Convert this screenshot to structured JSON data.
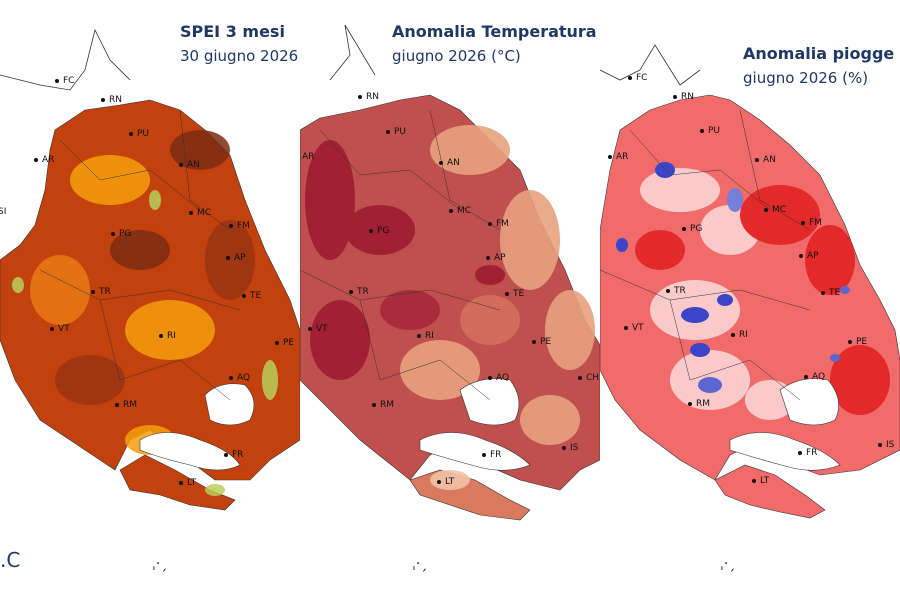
{
  "panels": [
    {
      "id": "spei",
      "title": "SPEI 3 mesi",
      "subtitle": "30 giugno 2026",
      "palette": {
        "base": "#c2410c",
        "light": "#f59e0b",
        "dark": "#7c2d12",
        "accent": "#b8d05a"
      },
      "cities": [
        "FC",
        "RN",
        "PU",
        "AR",
        "AN",
        "SI",
        "MC",
        "FM",
        "PG",
        "AP",
        "TR",
        "TE",
        "VT",
        "RI",
        "PE",
        "AQ",
        "RM",
        "FR",
        "LT"
      ]
    },
    {
      "id": "temp",
      "title": "Anomalia Temperatura",
      "subtitle": "giugno 2026 (°C)",
      "palette": {
        "base": "#c0504d",
        "light": "#e8a27f",
        "dark": "#9e1b32",
        "accent": "#f0c4a8"
      },
      "cities": [
        "RN",
        "PU",
        "AR",
        "AN",
        "MC",
        "FM",
        "PG",
        "AP",
        "TR",
        "TE",
        "VT",
        "RI",
        "PE",
        "AQ",
        "CH",
        "RM",
        "IS",
        "FR",
        "LT"
      ]
    },
    {
      "id": "rain",
      "title": "Anomalia piogge",
      "subtitle": "giugno 2026 (%)",
      "palette": {
        "base": "#f26b6b",
        "light": "#fbd0d0",
        "dark": "#e32626",
        "accent": "#3344cc"
      },
      "cities": [
        "FC",
        "RN",
        "PU",
        "AR",
        "AN",
        "MC",
        "FM",
        "PG",
        "AP",
        "TR",
        "TE",
        "VT",
        "RI",
        "PE",
        "AQ",
        "RM",
        "IS",
        "FR",
        "LT"
      ]
    }
  ],
  "footer": {
    "logo_fragment": ".C"
  }
}
